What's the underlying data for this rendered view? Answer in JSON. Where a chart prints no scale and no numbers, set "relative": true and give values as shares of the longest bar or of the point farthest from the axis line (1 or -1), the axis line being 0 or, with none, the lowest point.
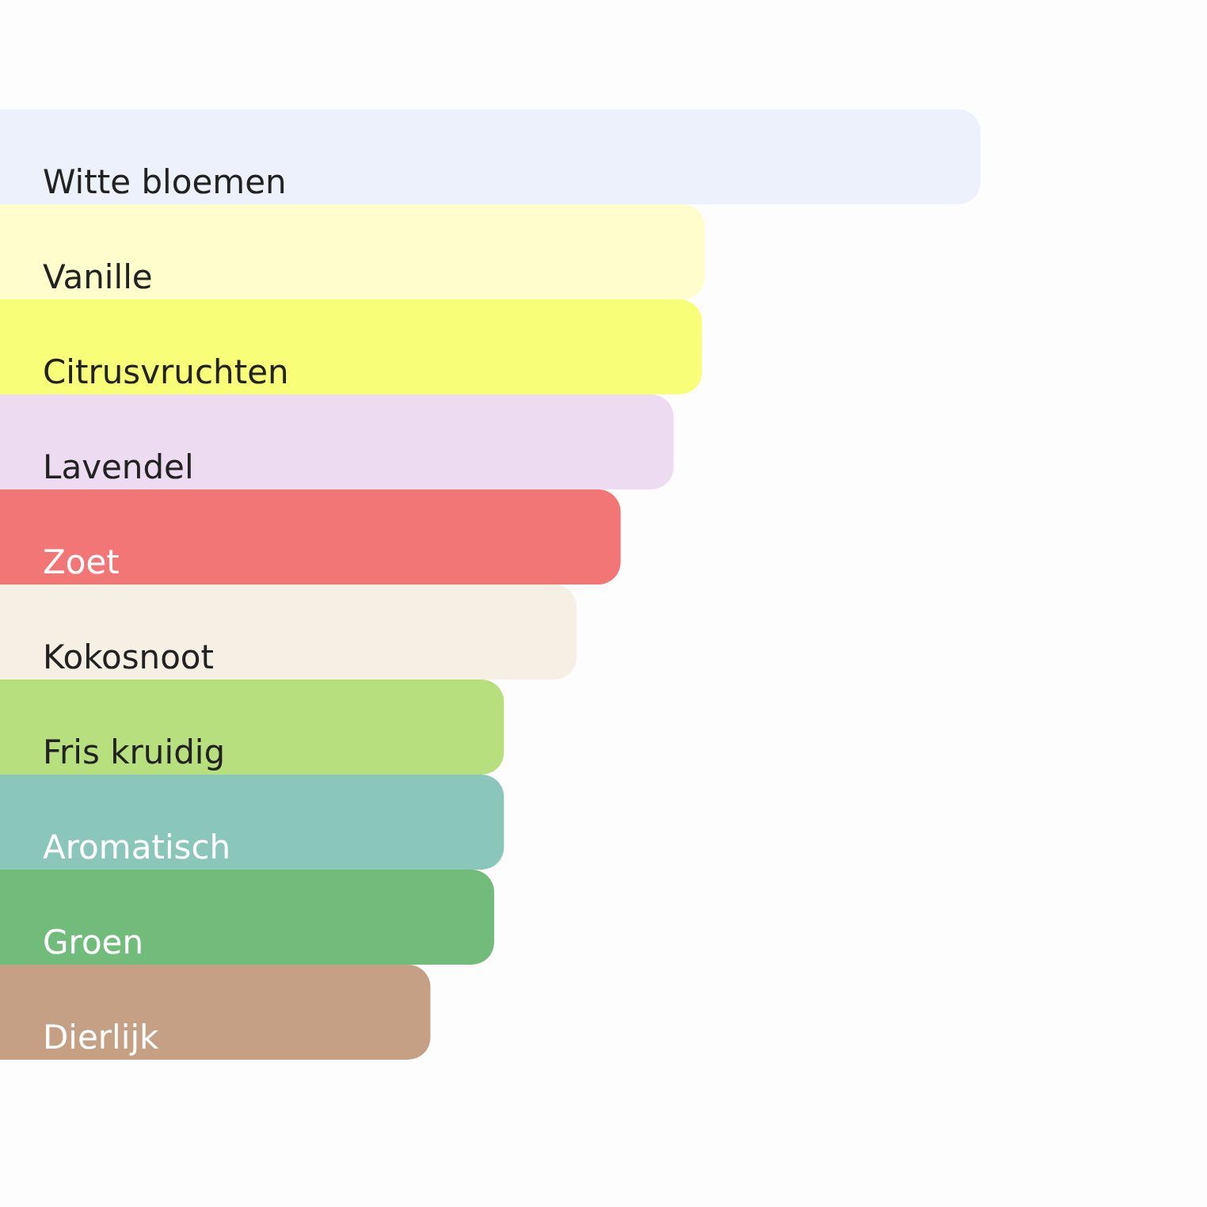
{
  "chart_data": {
    "type": "bar",
    "orientation": "horizontal",
    "relative": true,
    "categories": [
      "Witte bloemen",
      "Vanille",
      "Citrusvruchten",
      "Lavendel",
      "Zoet",
      "Kokosnoot",
      "Fris kruidig",
      "Aromatisch",
      "Groen",
      "Dierlijk"
    ],
    "values": [
      1,
      0.719,
      0.716,
      0.687,
      0.633,
      0.588,
      0.514,
      0.514,
      0.504,
      0.439
    ],
    "colors": [
      "#edf1fb",
      "#fefdcb",
      "#f9fe78",
      "#ecdbf1",
      "#f37676",
      "#f6efe4",
      "#b7df7e",
      "#8ac6ba",
      "#72bc7b",
      "#c5a084"
    ]
  }
}
